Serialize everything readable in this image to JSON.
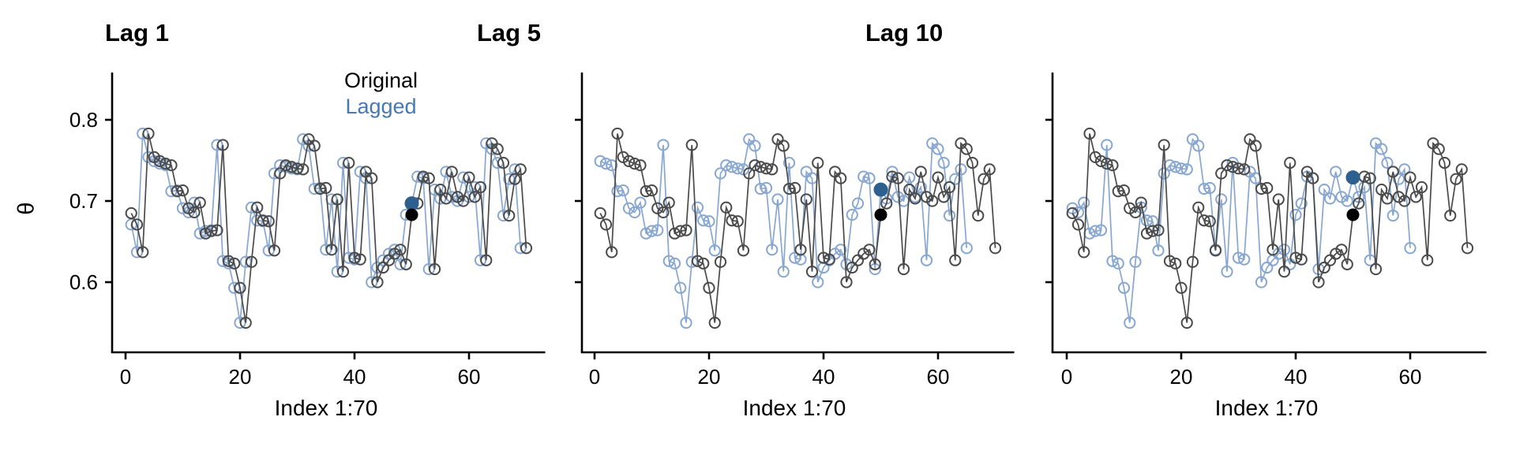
{
  "figure": {
    "background": "#ffffff"
  },
  "chart_data": {
    "type": "line",
    "panels": [
      {
        "title": "Lag 1",
        "lag": 1
      },
      {
        "title": "Lag 5",
        "lag": 5
      },
      {
        "title": "Lag 10",
        "lag": 10
      }
    ],
    "xlabel": "Index 1:70",
    "ylabel": "θ",
    "x_ticks": [
      0,
      20,
      40,
      60
    ],
    "y_ticks": [
      0.6,
      0.7,
      0.8
    ],
    "y_tick_labels": [
      "0.6",
      "0.7",
      "0.8"
    ],
    "index_range": [
      1,
      70
    ],
    "ylim": [
      0.515,
      0.858
    ],
    "grid": false,
    "legend_position": "inside-top-right-panel-1",
    "legend": [
      {
        "label": "Original",
        "color": "#000000"
      },
      {
        "label": "Lagged",
        "color": "#4678b2"
      }
    ],
    "highlight_index": 50,
    "series_rule": "lagged[i] = original[i + lag], plotted for i = 1 .. 70 - lag",
    "original": [
      0.685,
      0.671,
      0.637,
      0.783,
      0.754,
      0.749,
      0.746,
      0.744,
      0.712,
      0.713,
      0.691,
      0.686,
      0.698,
      0.66,
      0.663,
      0.664,
      0.769,
      0.626,
      0.623,
      0.593,
      0.55,
      0.625,
      0.692,
      0.676,
      0.675,
      0.639,
      0.734,
      0.744,
      0.742,
      0.74,
      0.739,
      0.776,
      0.768,
      0.715,
      0.716,
      0.64,
      0.702,
      0.613,
      0.747,
      0.63,
      0.628,
      0.736,
      0.728,
      0.6,
      0.618,
      0.627,
      0.635,
      0.64,
      0.622,
      0.683,
      0.697,
      0.73,
      0.728,
      0.616,
      0.714,
      0.703,
      0.736,
      0.705,
      0.7,
      0.729,
      0.705,
      0.717,
      0.627,
      0.771,
      0.764,
      0.747,
      0.682,
      0.727,
      0.739,
      0.642
    ]
  },
  "colors": {
    "axis": "#000000",
    "original_line": "#4a4a4a",
    "lagged_line": "#87a7d0",
    "highlight_original": "#000000",
    "highlight_lagged": "#2d608e"
  }
}
